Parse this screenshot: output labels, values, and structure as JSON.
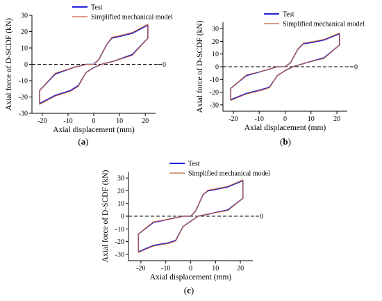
{
  "figure": {
    "panels": [
      {
        "label": "(a)",
        "label_letter": "a"
      },
      {
        "label": "(b)",
        "label_letter": "b"
      },
      {
        "label": "(c)",
        "label_letter": "c"
      }
    ]
  },
  "colors": {
    "test": "#1f1fd6",
    "model": "#c0603a",
    "axis": "#000000"
  },
  "chart_data": [
    {
      "type": "line",
      "panel": "a",
      "xlabel": "Axial displacement (mm)",
      "ylabel": "Axial force of D-SCDF (kN)",
      "xlim": [
        -24,
        24
      ],
      "ylim": [
        -30,
        30
      ],
      "xticks": [
        -20,
        -10,
        0,
        10,
        20
      ],
      "yticks": [
        -30,
        -20,
        -10,
        0,
        10,
        20,
        30
      ],
      "zero_line_label": "0",
      "legend_position": "top-right",
      "series": [
        {
          "name": "Test",
          "color": "#1f1fd6",
          "x": [
            0,
            2,
            5,
            7,
            10,
            15,
            21,
            21,
            15,
            8,
            3,
            0,
            -3,
            -6,
            -9,
            -15,
            -21,
            -21,
            -15,
            -8,
            -3,
            0
          ],
          "y": [
            0,
            3,
            12,
            16,
            17,
            19,
            24,
            16,
            6,
            2,
            0,
            -2,
            -5,
            -13,
            -16,
            -19,
            -24,
            -16,
            -6,
            -2,
            0,
            0
          ]
        },
        {
          "name": "Simplified mechanical model",
          "color": "#c0603a",
          "x": [
            0,
            2,
            5,
            7,
            10,
            15,
            21,
            21,
            15,
            8,
            3,
            0,
            -3,
            -6,
            -9,
            -15,
            -21,
            -21,
            -15,
            -8,
            -3,
            0
          ],
          "y": [
            0,
            3,
            12,
            16.5,
            17.5,
            19.5,
            24.5,
            16,
            5.5,
            2,
            0,
            -2,
            -5,
            -13.5,
            -16.5,
            -19.5,
            -24.5,
            -16,
            -5.5,
            -2,
            0,
            0
          ]
        }
      ]
    },
    {
      "type": "line",
      "panel": "b",
      "xlabel": "Axial displacement (mm)",
      "ylabel": "Axial force of D-SCDF (kN)",
      "xlim": [
        -24,
        24
      ],
      "ylim": [
        -35,
        35
      ],
      "xticks": [
        -20,
        -10,
        0,
        10,
        20
      ],
      "yticks": [
        -30,
        -20,
        -10,
        0,
        10,
        20,
        30
      ],
      "zero_line_label": "0",
      "legend_position": "top-right",
      "series": [
        {
          "name": "Test",
          "color": "#1f1fd6",
          "x": [
            0,
            2,
            5,
            7,
            10,
            15,
            21,
            21,
            15,
            8,
            3,
            0,
            -3,
            -6,
            -9,
            -15,
            -21,
            -21,
            -15,
            -8,
            -3,
            0
          ],
          "y": [
            0,
            3,
            14,
            18,
            19,
            21,
            26,
            17,
            7,
            3,
            0,
            -3,
            -7,
            -16,
            -18,
            -21,
            -26,
            -17,
            -7,
            -3,
            0,
            0
          ]
        },
        {
          "name": "Simplified mechanical model",
          "color": "#c0603a",
          "x": [
            0,
            2,
            5,
            7,
            10,
            15,
            21,
            21,
            15,
            8,
            3,
            0,
            -3,
            -6,
            -9,
            -15,
            -21,
            -21,
            -15,
            -8,
            -3,
            0
          ],
          "y": [
            0,
            3,
            14,
            18.5,
            19.5,
            21.5,
            26.5,
            17,
            6.5,
            3,
            0,
            -3,
            -7,
            -16.5,
            -18.5,
            -21.5,
            -26.5,
            -17,
            -6.5,
            -3,
            0,
            0
          ]
        }
      ]
    },
    {
      "type": "line",
      "panel": "c",
      "xlabel": "Axial displacement (mm)",
      "ylabel": "Axial force of D-SCDF (kN)",
      "xlim": [
        -25,
        25
      ],
      "ylim": [
        -35,
        35
      ],
      "xticks": [
        -20,
        -10,
        0,
        10,
        20
      ],
      "yticks": [
        -30,
        -20,
        -10,
        0,
        10,
        20,
        30
      ],
      "zero_line_label": "0",
      "legend_position": "top-right",
      "series": [
        {
          "name": "Test",
          "color": "#1f1fd6",
          "x": [
            0,
            2,
            5,
            7,
            10,
            15,
            21,
            21,
            15,
            8,
            3,
            0,
            -3,
            -6,
            -9,
            -15,
            -21,
            -21,
            -15,
            -8,
            -3,
            0
          ],
          "y": [
            0,
            4,
            17,
            20,
            21,
            23,
            28,
            14,
            5,
            2,
            0,
            -4,
            -8,
            -19,
            -21,
            -23,
            -28,
            -14,
            -5,
            -2,
            0,
            0
          ]
        },
        {
          "name": "Simplified mechanical model",
          "color": "#c0603a",
          "x": [
            0,
            2,
            5,
            7,
            10,
            15,
            21,
            21,
            15,
            8,
            3,
            0,
            -3,
            -6,
            -9,
            -15,
            -21,
            -21,
            -15,
            -8,
            -3,
            0
          ],
          "y": [
            0,
            4,
            17,
            20.5,
            21.5,
            23.5,
            28.5,
            14,
            4.5,
            2,
            0,
            -4,
            -8,
            -19.5,
            -21.5,
            -23.5,
            -28.5,
            -14,
            -4.5,
            -2,
            0,
            0
          ]
        }
      ]
    }
  ]
}
